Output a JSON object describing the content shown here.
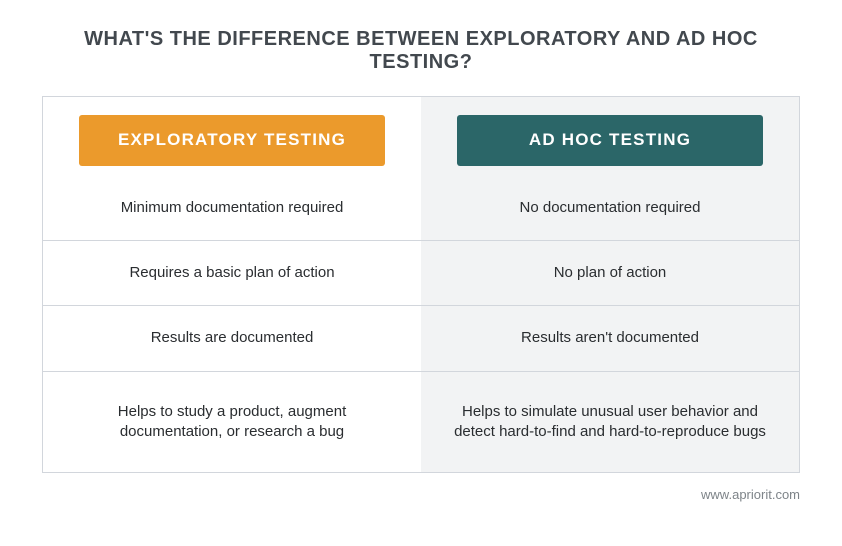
{
  "title": "WHAT'S THE DIFFERENCE BETWEEN EXPLORATORY AND AD HOC TESTING?",
  "title_color": "#42484e",
  "title_fontsize": 20,
  "columns": [
    {
      "header": "EXPLORATORY TESTING",
      "header_bg": "#eb9a2c",
      "header_text_color": "#ffffff"
    },
    {
      "header": "AD HOC TESTING",
      "header_bg": "#2b6668",
      "header_text_color": "#ffffff"
    }
  ],
  "rows": [
    {
      "left": "Minimum documentation required",
      "right": "No documentation required",
      "tall": false
    },
    {
      "left": "Requires a basic plan of action",
      "right": "No plan of action",
      "tall": false
    },
    {
      "left": "Results are documented",
      "right": "Results aren't documented",
      "tall": false
    },
    {
      "left": "Helps to study a product, augment documentation, or research a bug",
      "right": "Helps to simulate unusual user behavior and detect hard-to-find and hard-to-reproduce bugs",
      "tall": true
    }
  ],
  "body_text_color": "#2a2d30",
  "left_col_bg": "#ffffff",
  "right_col_bg": "#f2f3f4",
  "border_color": "#d2d6dc",
  "footer": "www.apriorit.com",
  "footer_color": "#7e8489",
  "background_color": "#ffffff"
}
